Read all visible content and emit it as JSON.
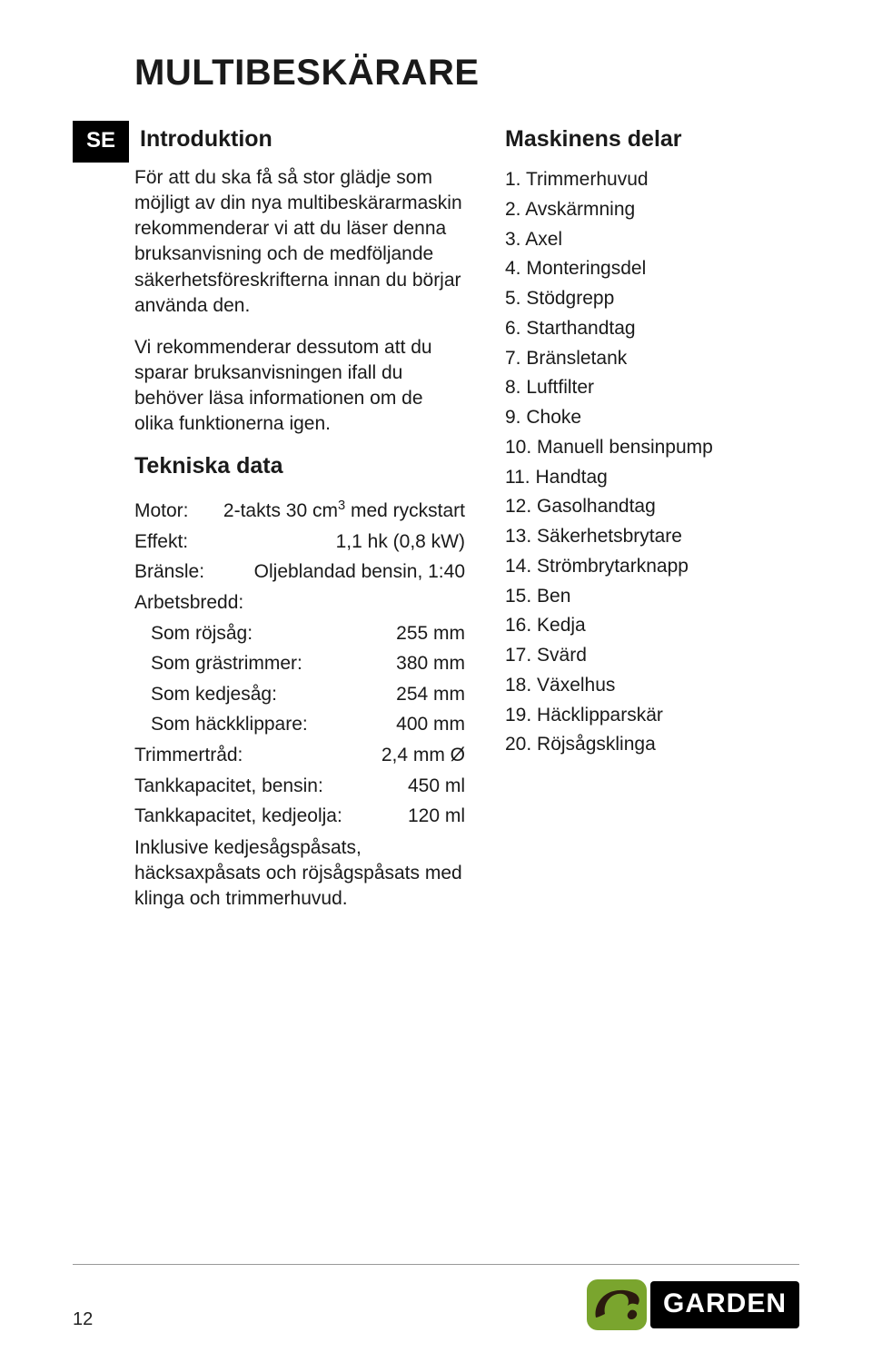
{
  "page": {
    "title": "MULTIBESKÄRARE",
    "lang_badge": "SE",
    "page_number": "12"
  },
  "intro": {
    "heading": "Introduktion",
    "p1": "För att du ska få så stor glädje som möjligt av din nya multibeskärarmaskin rekommenderar vi att du läser denna bruksanvisning och de medföljande säkerhetsföreskrifterna innan du börjar använda den.",
    "p2": "Vi rekommenderar dessutom att du sparar bruksanvisningen ifall du behöver läsa informationen om de olika funktionerna igen."
  },
  "specs": {
    "heading": "Tekniska data",
    "rows": [
      {
        "label": "Motor:",
        "value": "2-takts 30 cm³ med ryckstart",
        "sub": false
      },
      {
        "label": "Effekt:",
        "value": "1,1 hk (0,8 kW)",
        "sub": false
      },
      {
        "label": "Bränsle:",
        "value": "Oljeblandad bensin, 1:40",
        "sub": false
      },
      {
        "label": "Arbetsbredd:",
        "value": "",
        "sub": false
      },
      {
        "label": "Som röjsåg:",
        "value": "255 mm",
        "sub": true
      },
      {
        "label": "Som grästrimmer:",
        "value": "380 mm",
        "sub": true
      },
      {
        "label": "Som kedjesåg:",
        "value": "254 mm",
        "sub": true
      },
      {
        "label": "Som häckklippare:",
        "value": "400 mm",
        "sub": true
      },
      {
        "label": "Trimmertråd:",
        "value": "2,4 mm Ø",
        "sub": false
      },
      {
        "label": "Tankkapacitet, bensin:",
        "value": "450 ml",
        "sub": false
      },
      {
        "label": "Tankkapacitet, kedjeolja:",
        "value": "120 ml",
        "sub": false
      }
    ],
    "footnote": "Inklusive kedjesågspåsats, häcksaxpåsats och röjsågspåsats med klinga och trimmerhuvud."
  },
  "parts": {
    "heading": "Maskinens delar",
    "items": [
      "1.  Trimmerhuvud",
      "2.  Avskärmning",
      "3.  Axel",
      "4.  Monteringsdel",
      "5.  Stödgrepp",
      "6.  Starthandtag",
      "7.  Bränsletank",
      "8.  Luftfilter",
      "9.  Choke",
      "10. Manuell bensinpump",
      "11. Handtag",
      "12. Gasolhandtag",
      "13. Säkerhetsbrytare",
      "14. Strömbrytarknapp",
      "15. Ben",
      "16. Kedja",
      "17. Svärd",
      "18. Växelhus",
      "19. Häcklipparskär",
      "20. Röjsågsklinga"
    ]
  },
  "logo": {
    "text": "GARDEN",
    "badge_bg": "#7aa52e",
    "animal_color": "#2b1a0f"
  }
}
